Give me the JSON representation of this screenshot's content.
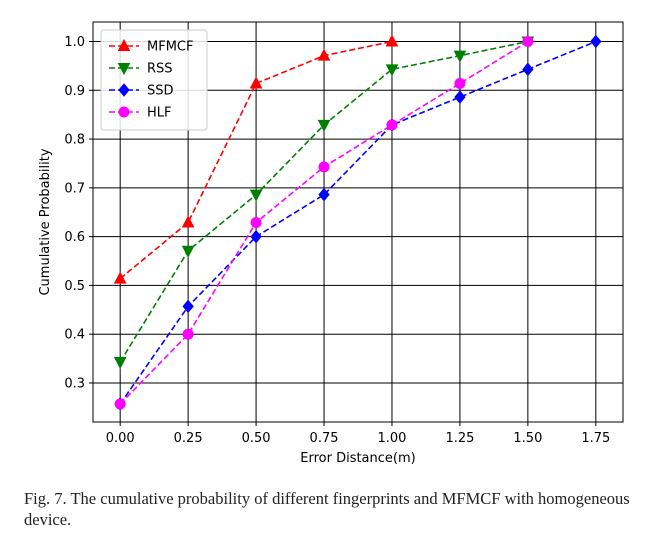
{
  "caption": "Fig. 7.    The cumulative probability of different fingerprints and MFMCF with homogeneous device.",
  "chart_data": {
    "type": "line",
    "xlabel": "Error Distance(m)",
    "ylabel": "Cumulative Probability",
    "xlim": [
      -0.1,
      1.85
    ],
    "ylim": [
      0.22,
      1.04
    ],
    "xticks": [
      0.0,
      0.25,
      0.5,
      0.75,
      1.0,
      1.25,
      1.5,
      1.75
    ],
    "xtick_labels": [
      "0.00",
      "0.25",
      "0.50",
      "0.75",
      "1.00",
      "1.25",
      "1.50",
      "1.75"
    ],
    "yticks": [
      0.3,
      0.4,
      0.5,
      0.6,
      0.7,
      0.8,
      0.9,
      1.0
    ],
    "ytick_labels": [
      "0.3",
      "0.4",
      "0.5",
      "0.6",
      "0.7",
      "0.8",
      "0.9",
      "1.0"
    ],
    "grid": true,
    "legend_position": "top-left",
    "series": [
      {
        "name": "MFMCF",
        "color": "#ff0000",
        "marker": "triangle-up",
        "x": [
          0.0,
          0.25,
          0.5,
          0.75,
          1.0
        ],
        "y": [
          0.514,
          0.629,
          0.914,
          0.971,
          1.0
        ]
      },
      {
        "name": "RSS",
        "color": "#008000",
        "marker": "triangle-down",
        "x": [
          0.0,
          0.25,
          0.5,
          0.75,
          1.0,
          1.25,
          1.5
        ],
        "y": [
          0.343,
          0.571,
          0.686,
          0.829,
          0.943,
          0.971,
          1.0
        ]
      },
      {
        "name": "SSD",
        "color": "#0000ff",
        "marker": "diamond",
        "x": [
          0.0,
          0.25,
          0.5,
          0.75,
          1.0,
          1.25,
          1.5,
          1.75
        ],
        "y": [
          0.257,
          0.457,
          0.6,
          0.686,
          0.829,
          0.886,
          0.943,
          1.0
        ]
      },
      {
        "name": "HLF",
        "color": "#ff00ff",
        "marker": "circle",
        "x": [
          0.0,
          0.25,
          0.5,
          0.75,
          1.0,
          1.25,
          1.5
        ],
        "y": [
          0.257,
          0.4,
          0.629,
          0.743,
          0.829,
          0.914,
          1.0
        ]
      }
    ]
  }
}
